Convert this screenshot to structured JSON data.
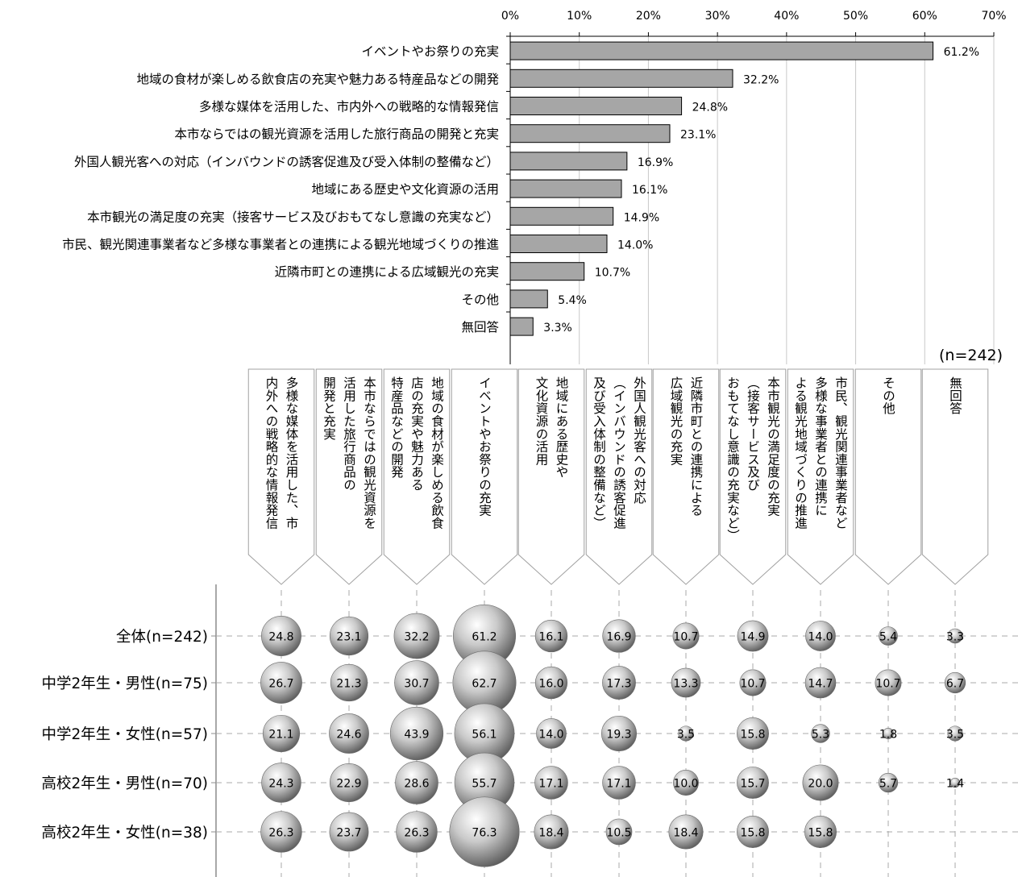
{
  "chart_data": [
    {
      "type": "bar",
      "orientation": "horizontal",
      "categories": [
        "イベントやお祭りの充実",
        "地域の食材が楽しめる飲食店の充実や魅力ある特産品などの開発",
        "多様な媒体を活用した、市内外への戦略的な情報発信",
        "本市ならではの観光資源を活用した旅行商品の開発と充実",
        "外国人観光客への対応（インバウンドの誘客促進及び受入体制の整備など）",
        "地域にある歴史や文化資源の活用",
        "本市観光の満足度の充実（接客サービス及びおもてなし意識の充実など）",
        "市民、観光関連事業者など多様な事業者との連携による観光地域づくりの推進",
        "近隣市町との連携による広域観光の充実",
        "その他",
        "無回答"
      ],
      "values": [
        61.2,
        32.2,
        24.8,
        23.1,
        16.9,
        16.1,
        14.9,
        14.0,
        10.7,
        5.4,
        3.3
      ],
      "value_labels": [
        "61.2%",
        "32.2%",
        "24.8%",
        "23.1%",
        "16.9%",
        "16.1%",
        "14.9%",
        "14.0%",
        "10.7%",
        "5.4%",
        "3.3%"
      ],
      "xlim": [
        0,
        70
      ],
      "x_ticks": [
        "0%",
        "10%",
        "20%",
        "30%",
        "40%",
        "50%",
        "60%",
        "70%"
      ],
      "x_axis_position": "top",
      "grid": true,
      "bar_color": "#a6a6a6",
      "note": "(n=242)"
    },
    {
      "type": "bubble",
      "columns": [
        "多様な媒体を活用した、市内外への戦略的な情報発信",
        "本市ならではの観光資源を活用した旅行商品の開発と充実",
        "地域の食材が楽しめる飲食店の充実や魅力ある特産品などの開発",
        "イベントやお祭りの充実",
        "地域にある歴史や文化資源の活用",
        "外国人観光客への対応（インバウンドの誘客促進及び受入体制の整備など）",
        "近隣市町との連携による広域観光の充実",
        "本市観光の満足度の充実（接客サービス及びおもてなし意識の充実など）",
        "市民、観光関連事業者など多様な事業者との連携による観光地域づくりの推進",
        "その他",
        "無回答"
      ],
      "column_label_lines": [
        [
          "多様な媒体を活用した、市",
          "内外への戦略的な情報発信"
        ],
        [
          "本市ならではの観光資源を",
          "活用した旅行商品の",
          "開発と充実"
        ],
        [
          "地域の食材が楽しめる飲食",
          "店の充実や魅力ある",
          "特産品などの開発"
        ],
        [
          "イベントやお祭りの充実"
        ],
        [
          "地域にある歴史や",
          "文化資源の活用"
        ],
        [
          "外国人観光客への対応",
          "（インバウンドの誘客促進",
          "及び受入体制の整備など）"
        ],
        [
          "近隣市町との連携による",
          "広域観光の充実"
        ],
        [
          "本市観光の満足度の充実",
          "（接客サービス及び",
          "おもてなし意識の充実など）"
        ],
        [
          "市民、観光関連事業者など",
          "多様な事業者との連携に",
          "よる観光地域づくりの推進"
        ],
        [
          "その他"
        ],
        [
          "無回答"
        ]
      ],
      "rows": [
        {
          "name": "全体(n=242)",
          "values": [
            24.8,
            23.1,
            32.2,
            61.2,
            16.1,
            16.9,
            10.7,
            14.9,
            14.0,
            5.4,
            3.3
          ]
        },
        {
          "name": "中学2年生・男性(n=75)",
          "values": [
            26.7,
            21.3,
            30.7,
            62.7,
            16.0,
            17.3,
            13.3,
            10.7,
            14.7,
            10.7,
            6.7
          ]
        },
        {
          "name": "中学2年生・女性(n=57)",
          "values": [
            21.1,
            24.6,
            43.9,
            56.1,
            14.0,
            19.3,
            3.5,
            15.8,
            5.3,
            1.8,
            3.5
          ]
        },
        {
          "name": "高校2年生・男性(n=70)",
          "values": [
            24.3,
            22.9,
            28.6,
            55.7,
            17.1,
            17.1,
            10.0,
            15.7,
            20.0,
            5.7,
            1.4
          ]
        },
        {
          "name": "高校2年生・女性(n=38)",
          "values": [
            26.3,
            23.7,
            26.3,
            76.3,
            18.4,
            10.5,
            18.4,
            15.8,
            15.8,
            null,
            null
          ]
        }
      ],
      "grid": "dashed"
    }
  ]
}
